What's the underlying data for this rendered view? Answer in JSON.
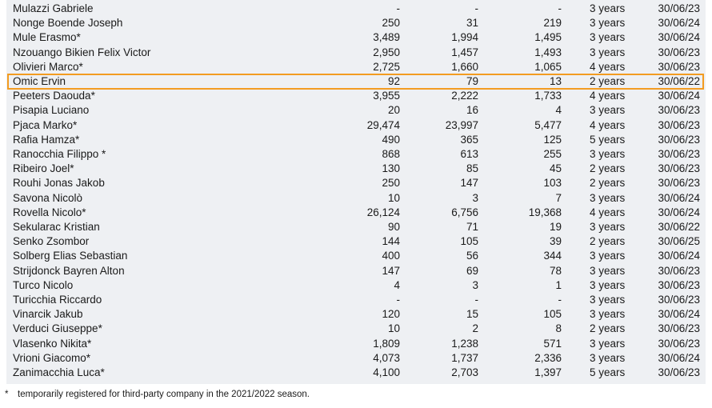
{
  "rows": [
    {
      "name": "Mulazzi Gabriele",
      "n1": "-",
      "n2": "-",
      "n3": "-",
      "duration": "3 years",
      "date": "30/06/23"
    },
    {
      "name": "Nonge Boende Joseph",
      "n1": "250",
      "n2": "31",
      "n3": "219",
      "duration": "3 years",
      "date": "30/06/24"
    },
    {
      "name": "Mule Erasmo*",
      "n1": "3,489",
      "n2": "1,994",
      "n3": "1,495",
      "duration": "3 years",
      "date": "30/06/24"
    },
    {
      "name": "Nzouango Bikien Felix Victor",
      "n1": "2,950",
      "n2": "1,457",
      "n3": "1,493",
      "duration": "3 years",
      "date": "30/06/23"
    },
    {
      "name": "Olivieri Marco*",
      "n1": "2,725",
      "n2": "1,660",
      "n3": "1,065",
      "duration": "4 years",
      "date": "30/06/23"
    },
    {
      "name": "Omic Ervin",
      "n1": "92",
      "n2": "79",
      "n3": "13",
      "duration": "2 years",
      "date": "30/06/22"
    },
    {
      "name": "Peeters Daouda*",
      "n1": "3,955",
      "n2": "2,222",
      "n3": "1,733",
      "duration": "4 years",
      "date": "30/06/24"
    },
    {
      "name": "Pisapia Luciano",
      "n1": "20",
      "n2": "16",
      "n3": "4",
      "duration": "3 years",
      "date": "30/06/23"
    },
    {
      "name": "Pjaca Marko*",
      "n1": "29,474",
      "n2": "23,997",
      "n3": "5,477",
      "duration": "4 years",
      "date": "30/06/23"
    },
    {
      "name": "Rafia Hamza*",
      "n1": "490",
      "n2": "365",
      "n3": "125",
      "duration": "5 years",
      "date": "30/06/23"
    },
    {
      "name": "Ranocchia Filippo *",
      "n1": "868",
      "n2": "613",
      "n3": "255",
      "duration": "3 years",
      "date": "30/06/23"
    },
    {
      "name": "Ribeiro Joel*",
      "n1": "130",
      "n2": "85",
      "n3": "45",
      "duration": "2 years",
      "date": "30/06/23"
    },
    {
      "name": "Rouhi Jonas Jakob",
      "n1": "250",
      "n2": "147",
      "n3": "103",
      "duration": "2 years",
      "date": "30/06/23"
    },
    {
      "name": "Savona Nicolò",
      "n1": "10",
      "n2": "3",
      "n3": "7",
      "duration": "3 years",
      "date": "30/06/24"
    },
    {
      "name": "Rovella Nicolo*",
      "n1": "26,124",
      "n2": "6,756",
      "n3": "19,368",
      "duration": "4 years",
      "date": "30/06/24"
    },
    {
      "name": "Sekularac Kristian",
      "n1": "90",
      "n2": "71",
      "n3": "19",
      "duration": "3 years",
      "date": "30/06/22"
    },
    {
      "name": "Senko Zsombor",
      "n1": "144",
      "n2": "105",
      "n3": "39",
      "duration": "2 years",
      "date": "30/06/25"
    },
    {
      "name": "Solberg Elias Sebastian",
      "n1": "400",
      "n2": "56",
      "n3": "344",
      "duration": "3 years",
      "date": "30/06/24"
    },
    {
      "name": "Strijdonck Bayren Alton",
      "n1": "147",
      "n2": "69",
      "n3": "78",
      "duration": "3 years",
      "date": "30/06/23"
    },
    {
      "name": "Turco Nicolo",
      "n1": "4",
      "n2": "3",
      "n3": "1",
      "duration": "3 years",
      "date": "30/06/23"
    },
    {
      "name": "Turicchia Riccardo",
      "n1": "-",
      "n2": "-",
      "n3": "-",
      "duration": "3 years",
      "date": "30/06/23"
    },
    {
      "name": "Vinarcik Jakub",
      "n1": "120",
      "n2": "15",
      "n3": "105",
      "duration": "3 years",
      "date": "30/06/24"
    },
    {
      "name": "Verduci Giuseppe*",
      "n1": "10",
      "n2": "2",
      "n3": "8",
      "duration": "2 years",
      "date": "30/06/23"
    },
    {
      "name": "Vlasenko Nikita*",
      "n1": "1,809",
      "n2": "1,238",
      "n3": "571",
      "duration": "3 years",
      "date": "30/06/23"
    },
    {
      "name": "Vrioni Giacomo*",
      "n1": "4,073",
      "n2": "1,737",
      "n3": "2,336",
      "duration": "3 years",
      "date": "30/06/24"
    },
    {
      "name": "Zanimacchia Luca*",
      "n1": "4,100",
      "n2": "2,703",
      "n3": "1,397",
      "duration": "5 years",
      "date": "30/06/23"
    }
  ],
  "highlight_row": "Omic Ervin",
  "footnote": {
    "marker": "*",
    "text": "temporarily registered for third-party company in the 2021/2022 season."
  },
  "colors": {
    "table_background": "#eef0f3",
    "highlight_border": "#f39c21",
    "text": "#1a1a1a"
  }
}
